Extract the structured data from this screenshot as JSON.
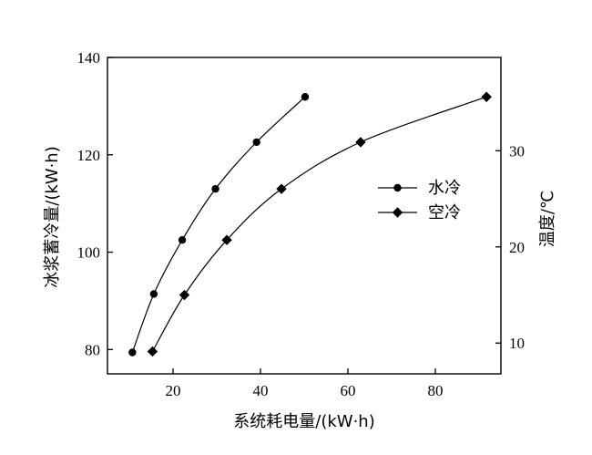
{
  "chart_data": {
    "type": "line",
    "title": "",
    "xlabel": "系统耗电量/(kW·h)",
    "ylabel": "冰浆蓄冷量/(kW·h)",
    "y2label": "温度/℃",
    "xlim": [
      5,
      95
    ],
    "ylim": [
      75,
      140
    ],
    "y2lim": [
      6.8,
      39.7
    ],
    "xticks": [
      20,
      40,
      60,
      80
    ],
    "yticks": [
      80,
      100,
      120,
      140
    ],
    "y2ticks": [
      10,
      20,
      30
    ],
    "grid": false,
    "legend_position": "right-middle",
    "series": [
      {
        "name": "水冷",
        "marker": "circle",
        "color": "#000000",
        "x": [
          10.7,
          15.6,
          22.1,
          29.7,
          39.1,
          50.2
        ],
        "y": [
          79.4,
          91.4,
          102.5,
          113.0,
          122.6,
          131.9
        ]
      },
      {
        "name": "空冷",
        "marker": "diamond",
        "color": "#000000",
        "x": [
          15.3,
          22.6,
          32.3,
          44.8,
          62.9,
          91.7
        ],
        "y": [
          79.6,
          91.2,
          102.5,
          113.0,
          122.6,
          131.9
        ]
      }
    ]
  }
}
